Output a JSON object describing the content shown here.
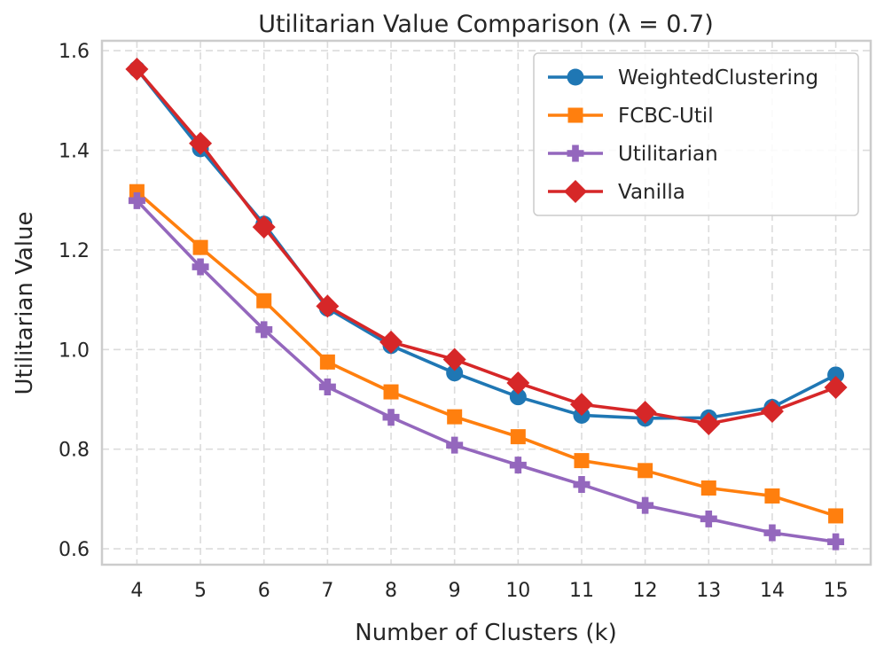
{
  "chart_data": {
    "type": "line",
    "title": "Utilitarian Value Comparison (λ = 0.7)",
    "xlabel": "Number of Clusters (k)",
    "ylabel": "Utilitarian Value",
    "x": [
      4,
      5,
      6,
      7,
      8,
      9,
      10,
      11,
      12,
      13,
      14,
      15
    ],
    "xlim": [
      3.45,
      15.55
    ],
    "ylim": [
      0.568,
      1.62
    ],
    "yticks": [
      0.6,
      0.8,
      1.0,
      1.2,
      1.4,
      1.6
    ],
    "ytick_labels": [
      "0.6",
      "0.8",
      "1.0",
      "1.2",
      "1.4",
      "1.6"
    ],
    "xtick_labels": [
      "4",
      "5",
      "6",
      "7",
      "8",
      "9",
      "10",
      "11",
      "12",
      "13",
      "14",
      "15"
    ],
    "grid": true,
    "legend_position": "top-right",
    "series": [
      {
        "name": "WeightedClustering",
        "color": "#1f77b4",
        "marker": "circle",
        "values": [
          1.563,
          1.403,
          1.252,
          1.083,
          1.008,
          0.953,
          0.905,
          0.868,
          0.862,
          0.863,
          0.884,
          0.949
        ]
      },
      {
        "name": "FCBC-Util",
        "color": "#ff7f0e",
        "marker": "square",
        "values": [
          1.317,
          1.205,
          1.098,
          0.975,
          0.915,
          0.865,
          0.825,
          0.777,
          0.757,
          0.722,
          0.706,
          0.666
        ]
      },
      {
        "name": "Utilitarian",
        "color": "#9467bd",
        "marker": "plus",
        "values": [
          1.299,
          1.166,
          1.04,
          0.925,
          0.864,
          0.808,
          0.768,
          0.729,
          0.687,
          0.66,
          0.632,
          0.614
        ]
      },
      {
        "name": "Vanilla",
        "color": "#d62728",
        "marker": "diamond",
        "values": [
          1.563,
          1.414,
          1.246,
          1.087,
          1.015,
          0.98,
          0.933,
          0.89,
          0.874,
          0.851,
          0.876,
          0.924
        ]
      }
    ]
  }
}
